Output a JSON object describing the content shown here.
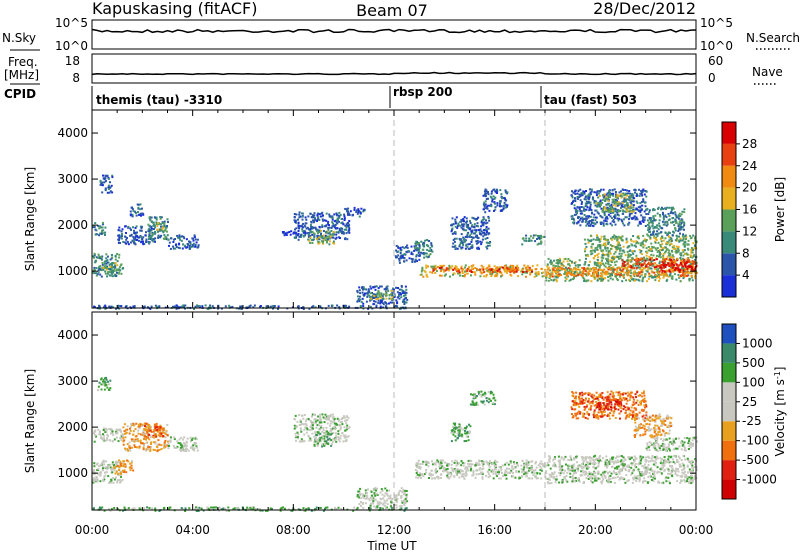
{
  "header": {
    "station": "Kapuskasing (fitACF)",
    "beam": "Beam 07",
    "date": "28/Dec/2012"
  },
  "aux_panels": {
    "nsky_label": "N.Sky",
    "nsearch_label": "N.Search",
    "freq_label_1": "Freq.",
    "freq_label_2": "[MHz]",
    "nave_label": "Nave",
    "cpid_label": "CPID",
    "noise_ticks_left": [
      "10^5",
      "10^0"
    ],
    "noise_ticks_right": [
      "10^5",
      "10^0"
    ],
    "freq_ticks_left": [
      "18",
      "8"
    ],
    "nave_ticks_right": [
      "60",
      "0"
    ],
    "cpid_segments": [
      {
        "start_hour": 0,
        "end_hour": 12,
        "label": "themis (tau) -3310"
      },
      {
        "start_hour": 12,
        "end_hour": 18,
        "label": "rbsp 200"
      },
      {
        "start_hour": 18,
        "end_hour": 24,
        "label": "tau (fast) 503"
      }
    ]
  },
  "chart_data": [
    {
      "type": "heatmap",
      "panel": "power",
      "ylabel": "Slant Range [km]",
      "xlabel": "Time UT",
      "x_range_hours": [
        0,
        24
      ],
      "y_range_km": [
        200,
        4500
      ],
      "y_ticks": [
        1000,
        2000,
        3000,
        4000
      ],
      "x_tick_labels": [
        "00:00",
        "04:00",
        "08:00",
        "12:00",
        "16:00",
        "20:00",
        "00:00"
      ],
      "colorbar": {
        "label": "Power [dB]",
        "ticks": [
          "4",
          "8",
          "12",
          "16",
          "20",
          "24",
          "28"
        ],
        "colors": [
          "#1a2fd8",
          "#2a55a8",
          "#3a8a7a",
          "#5aa05a",
          "#e8b020",
          "#f08a10",
          "#e84010",
          "#d80000"
        ]
      },
      "regions": [
        {
          "t0": 0.0,
          "t1": 0.5,
          "r0": 1800,
          "r1": 2100,
          "level": 2
        },
        {
          "t0": 0.0,
          "t1": 1.2,
          "r0": 900,
          "r1": 1400,
          "level": 2
        },
        {
          "t0": 0.4,
          "t1": 1.0,
          "r0": 1000,
          "r1": 1200,
          "level": 3
        },
        {
          "t0": 0.3,
          "t1": 0.8,
          "r0": 2700,
          "r1": 3100,
          "level": 1
        },
        {
          "t0": 1.0,
          "t1": 2.5,
          "r0": 1600,
          "r1": 2000,
          "level": 1
        },
        {
          "t0": 2.2,
          "t1": 3.0,
          "r0": 1700,
          "r1": 2200,
          "level": 2
        },
        {
          "t0": 2.5,
          "t1": 2.9,
          "r0": 1900,
          "r1": 2100,
          "level": 3
        },
        {
          "t0": 3.0,
          "t1": 4.2,
          "r0": 1500,
          "r1": 1800,
          "level": 1
        },
        {
          "t0": 1.5,
          "t1": 2.0,
          "r0": 2200,
          "r1": 2500,
          "level": 1
        },
        {
          "t0": 8.0,
          "t1": 10.2,
          "r0": 1700,
          "r1": 2300,
          "level": 1
        },
        {
          "t0": 8.6,
          "t1": 9.6,
          "r0": 1600,
          "r1": 1900,
          "level": 3
        },
        {
          "t0": 7.5,
          "t1": 8.2,
          "r0": 1800,
          "r1": 1900,
          "level": 0
        },
        {
          "t0": 10.0,
          "t1": 10.8,
          "r0": 2200,
          "r1": 2400,
          "level": 1
        },
        {
          "t0": 10.5,
          "t1": 12.5,
          "r0": 300,
          "r1": 700,
          "level": 1
        },
        {
          "t0": 11.0,
          "t1": 12.0,
          "r0": 400,
          "r1": 600,
          "level": 3
        },
        {
          "t0": 12.0,
          "t1": 13.0,
          "r0": 1200,
          "r1": 1600,
          "level": 1
        },
        {
          "t0": 13.0,
          "t1": 18.0,
          "r0": 900,
          "r1": 1150,
          "level": 4
        },
        {
          "t0": 13.5,
          "t1": 17.5,
          "r0": 1000,
          "r1": 1100,
          "level": 6
        },
        {
          "t0": 12.8,
          "t1": 13.5,
          "r0": 1300,
          "r1": 1700,
          "level": 2
        },
        {
          "t0": 14.2,
          "t1": 15.8,
          "r0": 1500,
          "r1": 2200,
          "level": 1
        },
        {
          "t0": 15.5,
          "t1": 16.5,
          "r0": 2300,
          "r1": 2800,
          "level": 1
        },
        {
          "t0": 17.0,
          "t1": 18.0,
          "r0": 1600,
          "r1": 1800,
          "level": 2
        },
        {
          "t0": 18.0,
          "t1": 24.0,
          "r0": 800,
          "r1": 1300,
          "level": 3
        },
        {
          "t0": 18.0,
          "t1": 24.0,
          "r0": 900,
          "r1": 1100,
          "level": 5
        },
        {
          "t0": 19.5,
          "t1": 24.0,
          "r0": 1300,
          "r1": 1800,
          "level": 3
        },
        {
          "t0": 21.0,
          "t1": 24.0,
          "r0": 1100,
          "r1": 1300,
          "level": 6
        },
        {
          "t0": 22.5,
          "t1": 24.0,
          "r0": 1000,
          "r1": 1200,
          "level": 7
        },
        {
          "t0": 19.0,
          "t1": 22.0,
          "r0": 2000,
          "r1": 2800,
          "level": 1
        },
        {
          "t0": 20.0,
          "t1": 21.5,
          "r0": 2300,
          "r1": 2700,
          "level": 3
        },
        {
          "t0": 22.0,
          "t1": 23.5,
          "r0": 1800,
          "r1": 2400,
          "level": 2
        },
        {
          "t0": 0.0,
          "t1": 12.5,
          "r0": 200,
          "r1": 280,
          "level": 1
        }
      ]
    },
    {
      "type": "heatmap",
      "panel": "velocity",
      "ylabel": "Slant Range [km]",
      "xlabel": "Time UT",
      "x_range_hours": [
        0,
        24
      ],
      "y_range_km": [
        200,
        4500
      ],
      "y_ticks": [
        1000,
        2000,
        3000,
        4000
      ],
      "x_tick_labels": [
        "00:00",
        "04:00",
        "08:00",
        "12:00",
        "16:00",
        "20:00",
        "00:00"
      ],
      "colorbar": {
        "label": "Velocity [m s",
        "label_sup": "-1",
        "label_end": "]",
        "ticks": [
          "1000",
          "500",
          "100",
          "25",
          "-25",
          "-100",
          "-500",
          "-1000"
        ],
        "colors": [
          "#2050c0",
          "#3a8a6a",
          "#3aa030",
          "#c8c8c0",
          "#c8c8c0",
          "#e8a020",
          "#f07010",
          "#e02010",
          "#d00000"
        ]
      },
      "regions": [
        {
          "t0": 0.0,
          "t1": 1.2,
          "r0": 1700,
          "r1": 2000,
          "level": 3
        },
        {
          "t0": 0.0,
          "t1": 1.2,
          "r0": 800,
          "r1": 1300,
          "level": 3
        },
        {
          "t0": 0.2,
          "t1": 0.7,
          "r0": 2800,
          "r1": 3100,
          "level": 2
        },
        {
          "t0": 1.2,
          "t1": 3.0,
          "r0": 1500,
          "r1": 2100,
          "level": 5
        },
        {
          "t0": 2.0,
          "t1": 2.8,
          "r0": 1800,
          "r1": 2100,
          "level": 6
        },
        {
          "t0": 0.8,
          "t1": 1.6,
          "r0": 1000,
          "r1": 1300,
          "level": 5
        },
        {
          "t0": 3.0,
          "t1": 4.2,
          "r0": 1500,
          "r1": 1800,
          "level": 3
        },
        {
          "t0": 8.0,
          "t1": 10.2,
          "r0": 1700,
          "r1": 2300,
          "level": 3
        },
        {
          "t0": 8.8,
          "t1": 9.5,
          "r0": 1600,
          "r1": 1900,
          "level": 2
        },
        {
          "t0": 10.5,
          "t1": 12.5,
          "r0": 300,
          "r1": 700,
          "level": 3
        },
        {
          "t0": 12.8,
          "t1": 18.0,
          "r0": 900,
          "r1": 1300,
          "level": 3
        },
        {
          "t0": 14.2,
          "t1": 15.0,
          "r0": 1700,
          "r1": 2100,
          "level": 2
        },
        {
          "t0": 15.0,
          "t1": 16.0,
          "r0": 2500,
          "r1": 2800,
          "level": 2
        },
        {
          "t0": 18.0,
          "t1": 24.0,
          "r0": 800,
          "r1": 1400,
          "level": 3
        },
        {
          "t0": 22.0,
          "t1": 24.0,
          "r0": 1500,
          "r1": 1800,
          "level": 3
        },
        {
          "t0": 19.0,
          "t1": 22.0,
          "r0": 2200,
          "r1": 2800,
          "level": 6
        },
        {
          "t0": 20.0,
          "t1": 21.0,
          "r0": 2400,
          "r1": 2700,
          "level": 7
        },
        {
          "t0": 21.5,
          "t1": 23.0,
          "r0": 1800,
          "r1": 2300,
          "level": 5
        },
        {
          "t0": 0.0,
          "t1": 12.5,
          "r0": 200,
          "r1": 280,
          "level": 2
        }
      ]
    }
  ]
}
